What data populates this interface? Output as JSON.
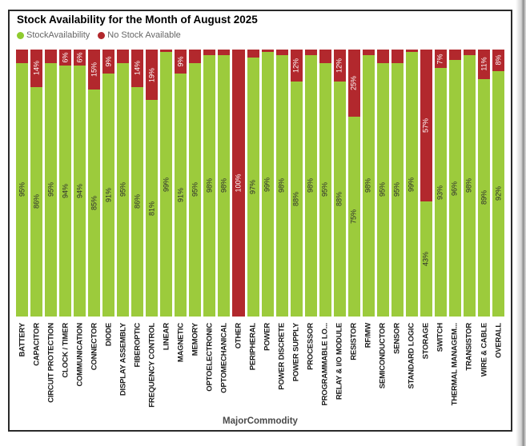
{
  "title": "Stock Availability for the Month of August 2025",
  "xlabel": "MajorCommodity",
  "colors": {
    "stock": "#9CCB3C",
    "no_stock": "#B2282D"
  },
  "legend": [
    {
      "label": "StockAvailability",
      "color": "#8FCB2F"
    },
    {
      "label": "No Stock Available",
      "color": "#B2282D"
    }
  ],
  "chart_data": {
    "type": "bar",
    "subtype": "100%-stacked-column",
    "title": "Stock Availability for the Month of August 2025",
    "xlabel": "MajorCommodity",
    "ylim": [
      0,
      100
    ],
    "grid": false,
    "legend_position": "top-left",
    "categories": [
      "BATTERY",
      "CAPACITOR",
      "CIRCUIT PROTECTION",
      "CLOCK / TIMER",
      "COMMUNICATION",
      "CONNECTOR",
      "DIODE",
      "DISPLAY ASSEMBLY",
      "FIBEROPTIC",
      "FREQUENCY CONTROL",
      "LINEAR",
      "MAGNETIC",
      "MEMORY",
      "OPTOELECTRONIC",
      "OPTOMECHANICAL",
      "OTHER",
      "PERIPHERAL",
      "POWER",
      "POWER DISCRETE",
      "POWER SUPPLY",
      "PROCESSOR",
      "PROGRAMMABLE LO...",
      "RELAY & I/O MODULE",
      "RESISTOR",
      "RF/MW",
      "SEMICONDUCTOR",
      "SENSOR",
      "STANDARD LOGIC",
      "STORAGE",
      "SWITCH",
      "THERMAL MANAGEM...",
      "TRANSISTOR",
      "WIRE & CABLE",
      "OVERALL"
    ],
    "series": [
      {
        "name": "StockAvailability",
        "color": "#9CCB3C",
        "values": [
          95,
          86,
          95,
          94,
          94,
          85,
          91,
          95,
          86,
          81,
          99,
          91,
          95,
          98,
          98,
          0,
          97,
          99,
          98,
          88,
          98,
          95,
          88,
          75,
          98,
          95,
          95,
          99,
          43,
          93,
          96,
          98,
          89,
          92
        ]
      },
      {
        "name": "No Stock Available",
        "color": "#B2282D",
        "values": [
          5,
          14,
          5,
          6,
          6,
          15,
          9,
          5,
          14,
          19,
          1,
          9,
          5,
          2,
          2,
          100,
          3,
          1,
          2,
          12,
          2,
          5,
          12,
          25,
          2,
          5,
          5,
          1,
          57,
          7,
          4,
          2,
          11,
          8
        ]
      }
    ],
    "data_label_notes": "green % labels centered in green segments; red % labels shown only for segments >= 6%"
  },
  "bars": [
    {
      "category": "BATTERY",
      "green": 95,
      "red": 5,
      "green_label": "95%",
      "red_label": ""
    },
    {
      "category": "CAPACITOR",
      "green": 86,
      "red": 14,
      "green_label": "86%",
      "red_label": "14%"
    },
    {
      "category": "CIRCUIT PROTECTION",
      "green": 95,
      "red": 5,
      "green_label": "95%",
      "red_label": ""
    },
    {
      "category": "CLOCK / TIMER",
      "green": 94,
      "red": 6,
      "green_label": "94%",
      "red_label": "6%"
    },
    {
      "category": "COMMUNICATION",
      "green": 94,
      "red": 6,
      "green_label": "94%",
      "red_label": "6%"
    },
    {
      "category": "CONNECTOR",
      "green": 85,
      "red": 15,
      "green_label": "85%",
      "red_label": "15%"
    },
    {
      "category": "DIODE",
      "green": 91,
      "red": 9,
      "green_label": "91%",
      "red_label": "9%"
    },
    {
      "category": "DISPLAY ASSEMBLY",
      "green": 95,
      "red": 5,
      "green_label": "95%",
      "red_label": ""
    },
    {
      "category": "FIBEROPTIC",
      "green": 86,
      "red": 14,
      "green_label": "86%",
      "red_label": "14%"
    },
    {
      "category": "FREQUENCY CONTROL",
      "green": 81,
      "red": 19,
      "green_label": "81%",
      "red_label": "19%"
    },
    {
      "category": "LINEAR",
      "green": 99,
      "red": 1,
      "green_label": "99%",
      "red_label": ""
    },
    {
      "category": "MAGNETIC",
      "green": 91,
      "red": 9,
      "green_label": "91%",
      "red_label": "9%"
    },
    {
      "category": "MEMORY",
      "green": 95,
      "red": 5,
      "green_label": "95%",
      "red_label": ""
    },
    {
      "category": "OPTOELECTRONIC",
      "green": 98,
      "red": 2,
      "green_label": "98%",
      "red_label": ""
    },
    {
      "category": "OPTOMECHANICAL",
      "green": 98,
      "red": 2,
      "green_label": "98%",
      "red_label": ""
    },
    {
      "category": "OTHER",
      "green": 0,
      "red": 100,
      "green_label": "",
      "red_label": "100%"
    },
    {
      "category": "PERIPHERAL",
      "green": 97,
      "red": 3,
      "green_label": "97%",
      "red_label": ""
    },
    {
      "category": "POWER",
      "green": 99,
      "red": 1,
      "green_label": "99%",
      "red_label": ""
    },
    {
      "category": "POWER DISCRETE",
      "green": 98,
      "red": 2,
      "green_label": "98%",
      "red_label": ""
    },
    {
      "category": "POWER SUPPLY",
      "green": 88,
      "red": 12,
      "green_label": "88%",
      "red_label": "12%"
    },
    {
      "category": "PROCESSOR",
      "green": 98,
      "red": 2,
      "green_label": "98%",
      "red_label": ""
    },
    {
      "category": "PROGRAMMABLE LO...",
      "green": 95,
      "red": 5,
      "green_label": "95%",
      "red_label": ""
    },
    {
      "category": "RELAY & I/O MODULE",
      "green": 88,
      "red": 12,
      "green_label": "88%",
      "red_label": "12%"
    },
    {
      "category": "RESISTOR",
      "green": 75,
      "red": 25,
      "green_label": "75%",
      "red_label": "25%"
    },
    {
      "category": "RF/MW",
      "green": 98,
      "red": 2,
      "green_label": "98%",
      "red_label": ""
    },
    {
      "category": "SEMICONDUCTOR",
      "green": 95,
      "red": 5,
      "green_label": "95%",
      "red_label": ""
    },
    {
      "category": "SENSOR",
      "green": 95,
      "red": 5,
      "green_label": "95%",
      "red_label": ""
    },
    {
      "category": "STANDARD LOGIC",
      "green": 99,
      "red": 1,
      "green_label": "99%",
      "red_label": ""
    },
    {
      "category": "STORAGE",
      "green": 43,
      "red": 57,
      "green_label": "43%",
      "red_label": "57%"
    },
    {
      "category": "SWITCH",
      "green": 93,
      "red": 7,
      "green_label": "93%",
      "red_label": "7%"
    },
    {
      "category": "THERMAL MANAGEM...",
      "green": 96,
      "red": 4,
      "green_label": "96%",
      "red_label": ""
    },
    {
      "category": "TRANSISTOR",
      "green": 98,
      "red": 2,
      "green_label": "98%",
      "red_label": ""
    },
    {
      "category": "WIRE & CABLE",
      "green": 89,
      "red": 11,
      "green_label": "89%",
      "red_label": "11%"
    },
    {
      "category": "OVERALL",
      "green": 92,
      "red": 8,
      "green_label": "92%",
      "red_label": "8%"
    }
  ]
}
